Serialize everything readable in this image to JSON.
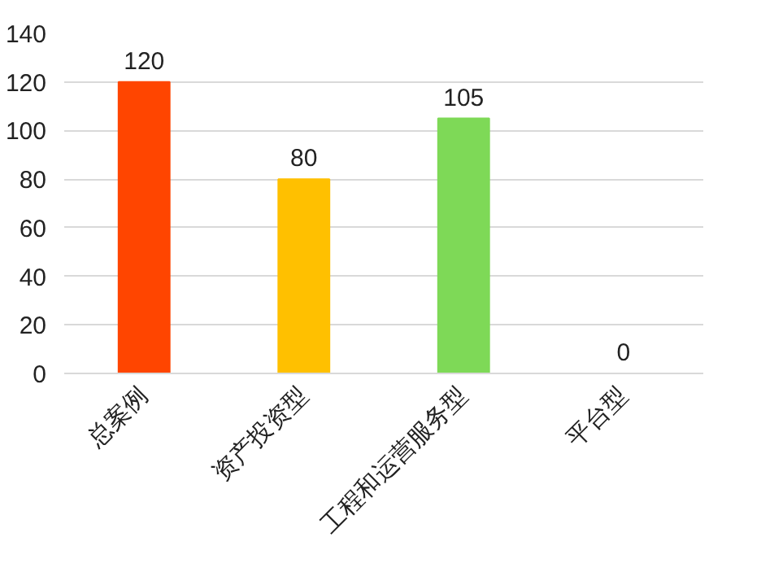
{
  "chart_data": {
    "type": "bar",
    "categories": [
      "总案例",
      "资产投资型",
      "工程和运营服务型",
      "平台型"
    ],
    "values": [
      120,
      80,
      105,
      0
    ],
    "colors": [
      "#ff4500",
      "#ffc000",
      "#7ed957",
      "#5b9bd5"
    ],
    "ylim": [
      0,
      140
    ],
    "yticks": [
      0,
      20,
      40,
      60,
      80,
      100,
      120,
      140
    ],
    "grid": "y",
    "data_labels": true
  }
}
